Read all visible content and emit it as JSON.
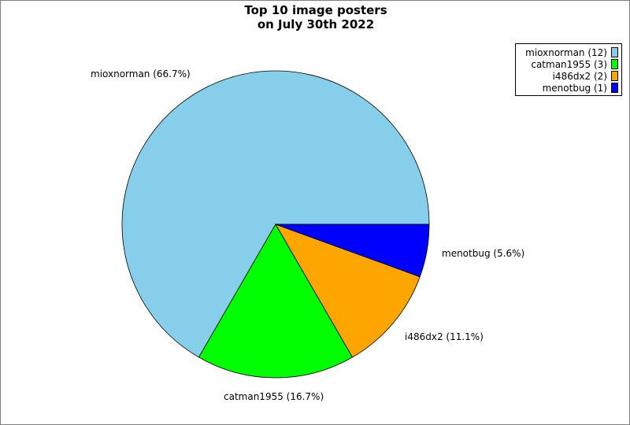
{
  "chart_data": {
    "type": "pie",
    "title_lines": [
      "Top 10 image posters",
      "on July 30th 2022"
    ],
    "slices": [
      {
        "name": "mioxnorman",
        "value": 12,
        "percent_label": "mioxnorman (66.7%)",
        "legend_label": "mioxnorman (12)",
        "color": "#87ceeb"
      },
      {
        "name": "catman1955",
        "value": 3,
        "percent_label": "catman1955 (16.7%)",
        "legend_label": "catman1955 (3)",
        "color": "#00ff00"
      },
      {
        "name": "i486dx2",
        "value": 2,
        "percent_label": "i486dx2 (11.1%)",
        "legend_label": "i486dx2 (2)",
        "color": "#ffa500"
      },
      {
        "name": "menotbug",
        "value": 1,
        "percent_label": "menotbug (5.6%)",
        "legend_label": "menotbug (1)",
        "color": "#0000ff"
      }
    ],
    "legend_position": "top-right"
  }
}
